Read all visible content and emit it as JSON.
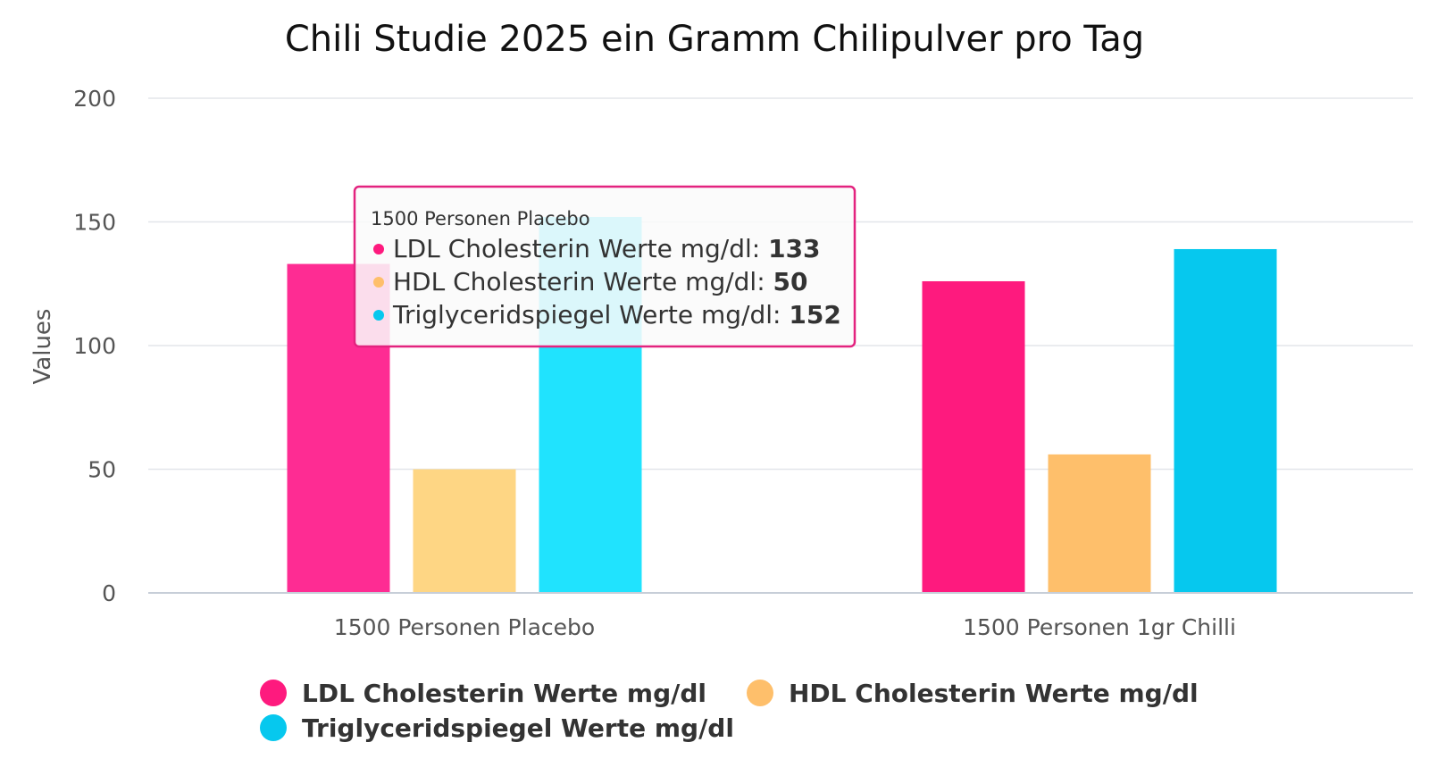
{
  "chart_data": {
    "type": "bar",
    "title": "Chili Studie 2025 ein Gramm Chilipulver pro Tag",
    "xlabel": "",
    "ylabel": "Values",
    "ylim": [
      0,
      200
    ],
    "yticks": [
      0,
      50,
      100,
      150,
      200
    ],
    "grid": true,
    "legend_position": "bottom",
    "categories": [
      "1500 Personen Placebo",
      "1500 Personen 1gr Chilli"
    ],
    "series": [
      {
        "name": "LDL Cholesterin Werte mg/dl",
        "values": [
          133,
          126
        ],
        "color": "#fe1a7e",
        "hover_color": "#fe2c93"
      },
      {
        "name": "HDL Cholesterin Werte mg/dl",
        "values": [
          50,
          56
        ],
        "color": "#febf6b",
        "hover_color": "#fed684"
      },
      {
        "name": "Triglyceridspiegel Werte mg/dl",
        "values": [
          152,
          139
        ],
        "color": "#06c8ee",
        "hover_color": "#20e3fe"
      }
    ],
    "tooltip": {
      "category": "1500 Personen Placebo",
      "border_color": "#e3237f",
      "rows": [
        {
          "label": "LDL Cholesterin Werte mg/dl:",
          "value": "133",
          "color": "#fe1a7e"
        },
        {
          "label": "HDL Cholesterin Werte mg/dl:",
          "value": "50",
          "color": "#febf6b"
        },
        {
          "label": "Triglyceridspiegel Werte mg/dl:",
          "value": "152",
          "color": "#06c8ee"
        }
      ]
    }
  }
}
